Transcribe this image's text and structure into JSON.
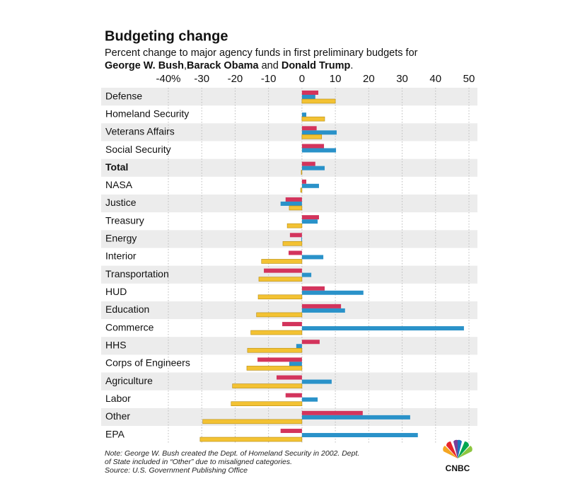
{
  "chart_data": {
    "type": "bar",
    "orientation": "horizontal",
    "title": "Budgeting change",
    "subtitle": "Percent change to major agency funds in first preliminary budgets for",
    "legend_separators": [
      ",",
      " and ",
      "."
    ],
    "categories": [
      "Defense",
      "Homeland Security",
      "Veterans Affairs",
      "Social Security",
      "Total",
      "NASA",
      "Justice",
      "Treasury",
      "Energy",
      "Interior",
      "Transportation",
      "HUD",
      "Education",
      "Commerce",
      "HHS",
      "Corps of Engineers",
      "Agriculture",
      "Labor",
      "Other",
      "EPA"
    ],
    "emphasized_category": "Total",
    "series": [
      {
        "name": "George W. Bush",
        "color": "#d3345c",
        "values": [
          4.9,
          null,
          4.4,
          6.6,
          4.0,
          1.3,
          -4.9,
          5.1,
          -3.6,
          -4.0,
          -11.4,
          6.8,
          11.7,
          -5.9,
          5.3,
          -13.3,
          -7.6,
          -4.9,
          18.2,
          -6.4
        ]
      },
      {
        "name": "Barack Obama",
        "color": "#2a92c9",
        "values": [
          4.0,
          1.3,
          10.4,
          10.2,
          6.8,
          5.1,
          -6.4,
          4.7,
          -0.2,
          6.4,
          2.8,
          18.4,
          12.9,
          48.5,
          -1.7,
          -3.8,
          8.9,
          4.7,
          32.4,
          34.7
        ]
      },
      {
        "name": "Donald Trump",
        "color": "#f3c233",
        "values": [
          10.0,
          6.8,
          5.9,
          null,
          -0.2,
          -0.4,
          -3.8,
          -4.4,
          -5.7,
          -12.1,
          -12.9,
          -13.1,
          -13.6,
          -15.3,
          -16.3,
          -16.5,
          -20.8,
          -21.2,
          -29.7,
          -30.5
        ]
      }
    ],
    "xlim": [
      -40,
      50
    ],
    "xticks": [
      {
        "value": -40,
        "label": "-40%"
      },
      -30,
      -20,
      -10,
      0,
      10,
      20,
      30,
      40,
      50
    ],
    "grid": true,
    "notes": [
      "Note: George W. Bush created the Dept. of Homeland Security in 2002. Dept.",
      "of State included in “Other” due to misaligned categories.",
      "Source: U.S. Government Publishing Office"
    ],
    "logo": "CNBC"
  }
}
